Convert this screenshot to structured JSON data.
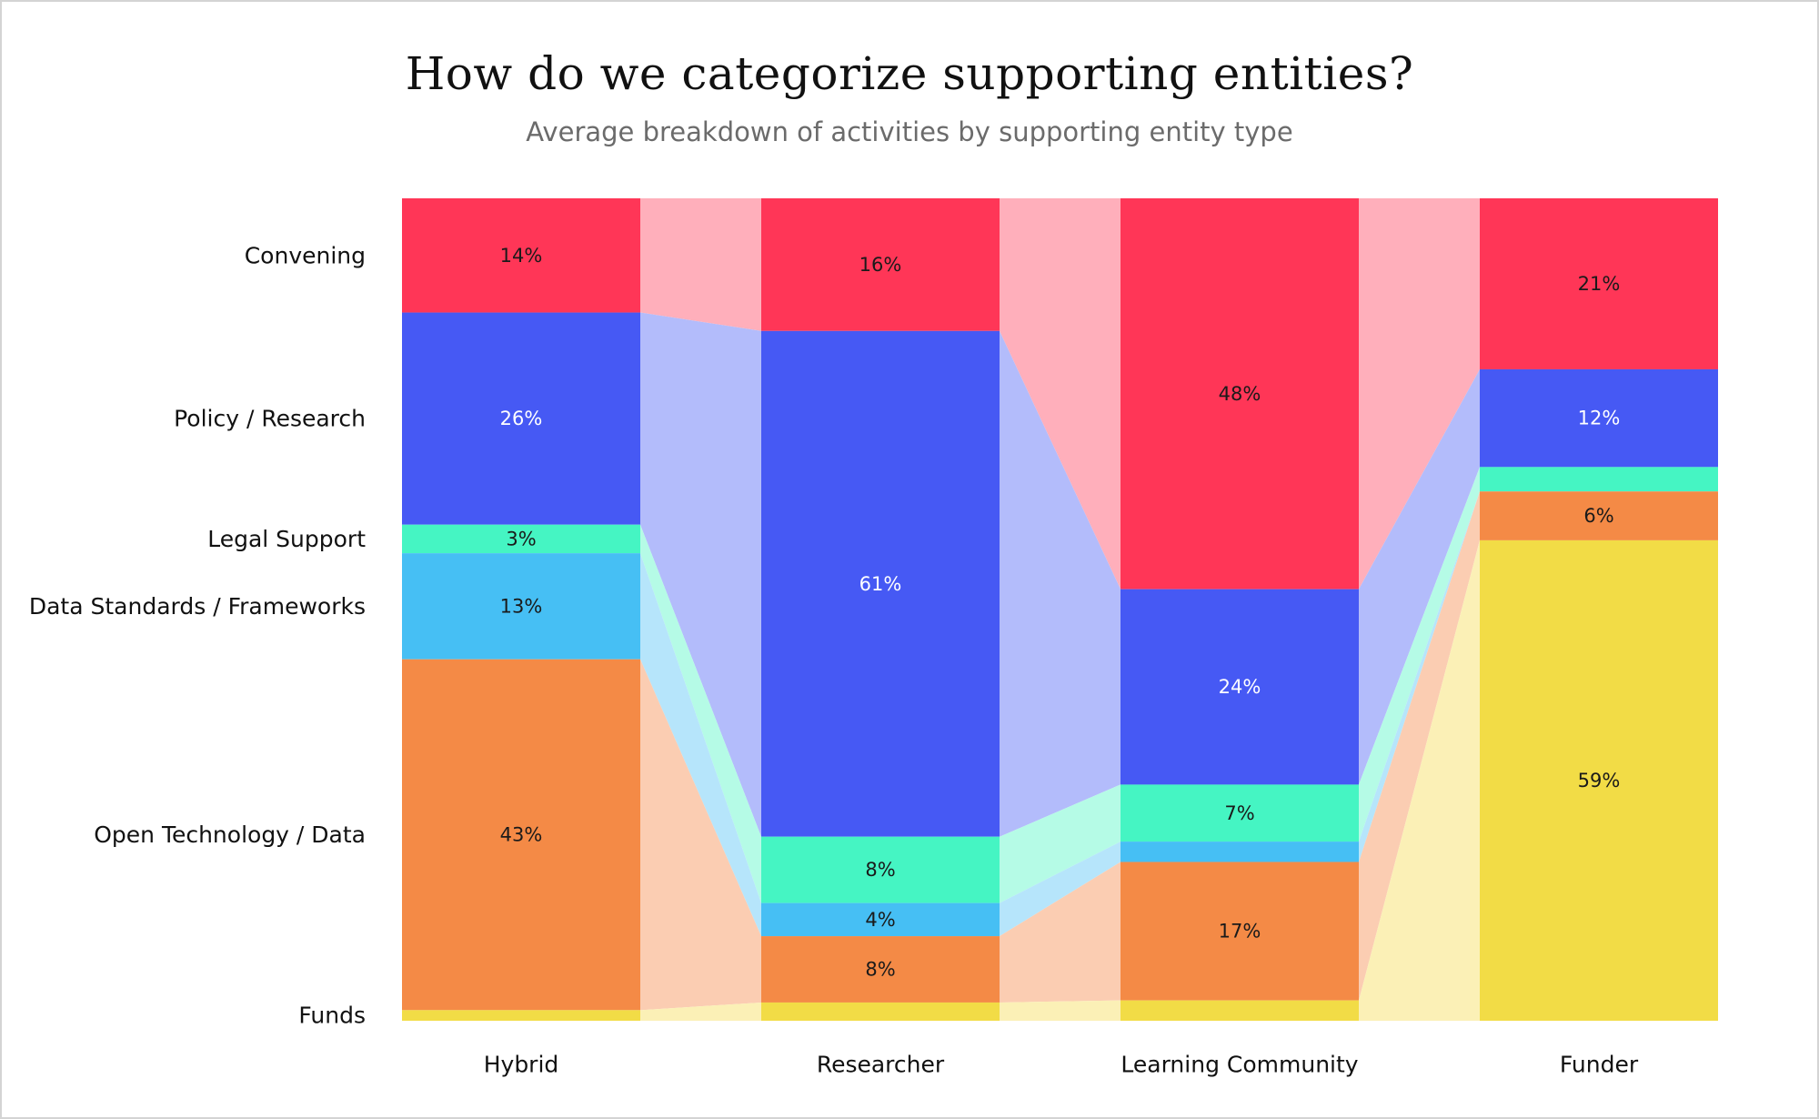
{
  "title": "How do we categorize supporting entities?",
  "subtitle": "Average breakdown of activities by supporting entity type",
  "chart_data": {
    "type": "bar",
    "stacked": true,
    "normalized": true,
    "connectors": true,
    "title": "How do we categorize supporting entities?",
    "subtitle": "Average breakdown of activities by supporting entity type",
    "categories": [
      "Hybrid",
      "Researcher",
      "Learning Community",
      "Funder"
    ],
    "series": [
      {
        "name": "Convening",
        "color": "#ff3657",
        "link_color": "#ffafbb",
        "label_color": "#1a1a1a",
        "values": [
          14,
          16,
          48,
          21
        ],
        "labels": [
          "14%",
          "16%",
          "48%",
          "21%"
        ]
      },
      {
        "name": "Policy / Research",
        "color": "#4659f4",
        "link_color": "#b3bcfb",
        "label_color": "#ffffff",
        "values": [
          26,
          61,
          24,
          12
        ],
        "labels": [
          "26%",
          "61%",
          "24%",
          "12%"
        ]
      },
      {
        "name": "Legal Support",
        "color": "#45f5c3",
        "link_color": "#b5fbe6",
        "label_color": "#1a1a1a",
        "values": [
          3.5,
          8,
          7,
          3
        ],
        "labels": [
          "3%",
          "8%",
          "7%",
          ""
        ]
      },
      {
        "name": "Data Standards / Frameworks",
        "color": "#46bff4",
        "link_color": "#b6e5fb",
        "label_color": "#1a1a1a",
        "values": [
          13,
          4,
          2.5,
          0
        ],
        "labels": [
          "13%",
          "4%",
          "",
          ""
        ]
      },
      {
        "name": "Open Technology / Data",
        "color": "#f48a46",
        "link_color": "#fbcdb2",
        "label_color": "#1a1a1a",
        "values": [
          43,
          8,
          17,
          6
        ],
        "labels": [
          "43%",
          "8%",
          "17%",
          "6%"
        ]
      },
      {
        "name": "Funds",
        "color": "#f2dc46",
        "link_color": "#fbf0b6",
        "label_color": "#1a1a1a",
        "values": [
          1.3,
          2.2,
          2.5,
          59
        ],
        "labels": [
          "",
          "",
          "",
          "59%"
        ]
      }
    ],
    "ylim": [
      0,
      100
    ],
    "legend": "left-side row labels",
    "grid": false
  }
}
